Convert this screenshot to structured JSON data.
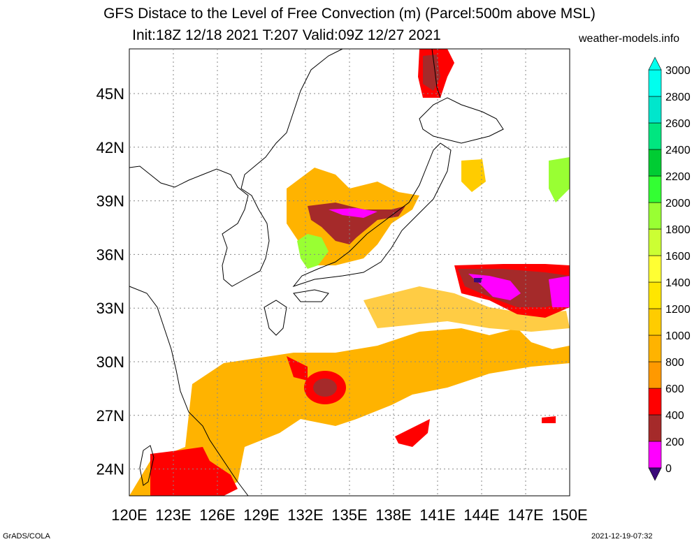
{
  "header": {
    "title_line1": "GFS Distace to the Level of Free Convection (m) (Parcel:500m above MSL)",
    "title_line2": "Init:18Z 12/18 2021 T:207 Valid:09Z 12/27 2021",
    "site": "weather-models.info"
  },
  "axes": {
    "lon_labels": [
      "120E",
      "123E",
      "126E",
      "129E",
      "132E",
      "135E",
      "138E",
      "141E",
      "144E",
      "147E",
      "150E"
    ],
    "lat_labels": [
      "45N",
      "42N",
      "39N",
      "36N",
      "33N",
      "30N",
      "27N",
      "24N"
    ],
    "lon_range": [
      120,
      150
    ],
    "lat_range": [
      22.5,
      47.5
    ]
  },
  "colorbar": {
    "labels": [
      "0",
      "200",
      "400",
      "600",
      "800",
      "1000",
      "1200",
      "1400",
      "1600",
      "1800",
      "2000",
      "2200",
      "2400",
      "2600",
      "2800",
      "3000"
    ],
    "colors": [
      "#3b0a7a",
      "#ff00ff",
      "#a52a2a",
      "#ff0000",
      "#ff9900",
      "#ffb300",
      "#ffcc00",
      "#ffe600",
      "#ffff33",
      "#ccff33",
      "#99ff33",
      "#33ff33",
      "#00cc33",
      "#00e680",
      "#00e6cc",
      "#00ffee"
    ]
  },
  "footer": {
    "left": "GrADS/COLA",
    "right": "2021-12-19-07:32"
  }
}
